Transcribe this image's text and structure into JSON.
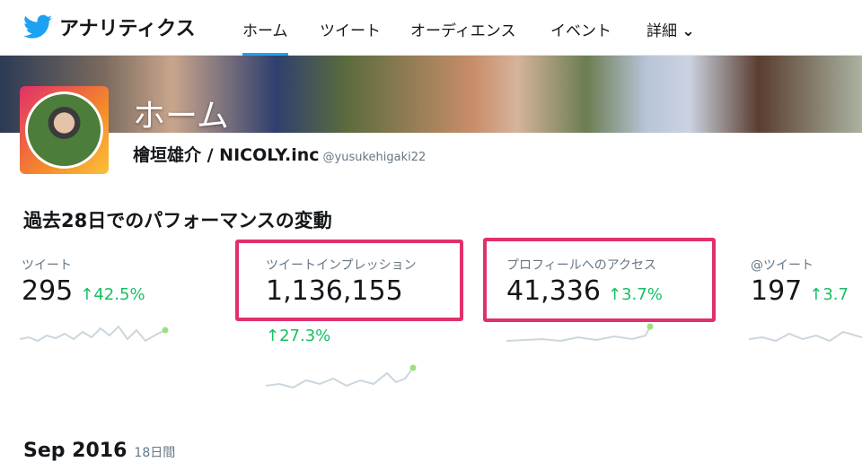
{
  "app": {
    "title": "アナリティクス",
    "icon": "twitter-bird-icon",
    "accent": "#1da1f2"
  },
  "nav": {
    "tabs": [
      {
        "label": "ホーム",
        "active": true
      },
      {
        "label": "ツイート"
      },
      {
        "label": "オーディエンス"
      },
      {
        "label": "イベント"
      },
      {
        "label": "詳細"
      }
    ]
  },
  "profile": {
    "page_title": "ホーム",
    "name": "檜垣雄介 / NICOLY.inc",
    "handle": "@yusukehigaki22"
  },
  "section": {
    "title": "過去28日でのパフォーマンスの変動"
  },
  "metrics": [
    {
      "label": "ツイート",
      "value": "295",
      "change": "42.5%",
      "highlighted": false
    },
    {
      "label": "ツイートインプレッション",
      "value": "1,136,155",
      "change": "27.3%",
      "highlighted": true
    },
    {
      "label": "プロフィールへのアクセス",
      "value": "41,336",
      "change": "3.7%",
      "highlighted": true
    },
    {
      "label": "@ツイート",
      "value": "197",
      "change": "3.7",
      "highlighted": false
    }
  ],
  "highlight_color": "#e0306e",
  "positive_color": "#17bf63",
  "bottom": {
    "month": "Sep 2016",
    "days": "18日間"
  }
}
